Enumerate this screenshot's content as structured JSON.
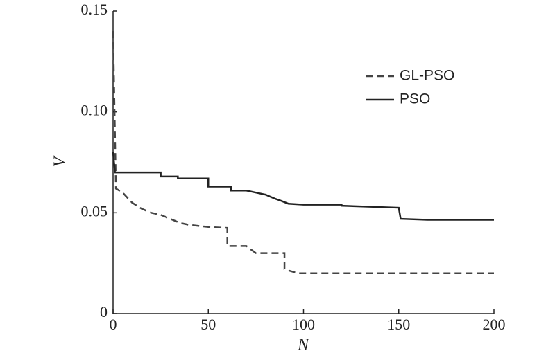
{
  "chart_data": {
    "type": "line",
    "xlabel": "N",
    "ylabel": "V",
    "xlim": [
      0,
      200
    ],
    "ylim": [
      0,
      0.15
    ],
    "xticks": [
      0,
      50,
      100,
      150,
      200
    ],
    "yticks": [
      0,
      0.05,
      {
        "value": 0.1,
        "label": "0.10"
      },
      0.15
    ],
    "legend": "upper-right",
    "series": [
      {
        "name": "GL-PSO",
        "color": "#444444",
        "dashed": true,
        "x": [
          0,
          1.5,
          5,
          10,
          15,
          20,
          25,
          30,
          35,
          40,
          50,
          60,
          60,
          70,
          75,
          90,
          90,
          97,
          200
        ],
        "values": [
          0.14,
          0.062,
          0.06,
          0.055,
          0.052,
          0.05,
          0.049,
          0.047,
          0.045,
          0.044,
          0.043,
          0.0425,
          0.0335,
          0.0335,
          0.03,
          0.03,
          0.022,
          0.02,
          0.02
        ]
      },
      {
        "name": "PSO",
        "color": "#222222",
        "dashed": false,
        "x": [
          0,
          1,
          25,
          25,
          34,
          34,
          50,
          50,
          62,
          62,
          70,
          75,
          80,
          85,
          88,
          92,
          100,
          120,
          120,
          150,
          151,
          165,
          200
        ],
        "values": [
          0.08,
          0.07,
          0.07,
          0.068,
          0.068,
          0.067,
          0.067,
          0.063,
          0.063,
          0.061,
          0.061,
          0.06,
          0.059,
          0.057,
          0.056,
          0.0545,
          0.054,
          0.054,
          0.0535,
          0.0525,
          0.047,
          0.0465,
          0.0465
        ]
      }
    ]
  }
}
